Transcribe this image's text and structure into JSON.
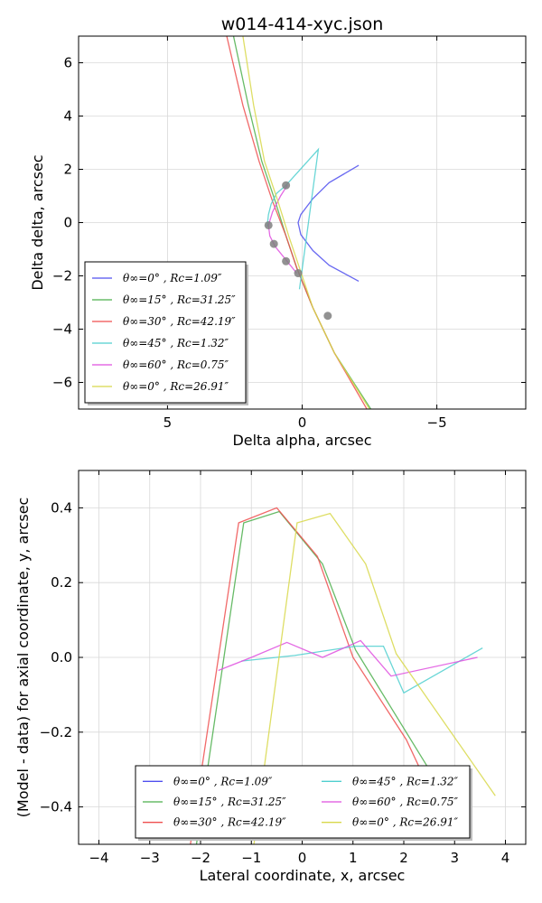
{
  "chart_data": [
    {
      "type": "line",
      "title": "w014-414-xyc.json",
      "xlabel": "Delta alpha, arcsec",
      "ylabel": "Delta delta, arcsec",
      "xlim": [
        8.3,
        -8.3
      ],
      "ylim": [
        -7,
        7
      ],
      "xticks": [
        5,
        0,
        -5
      ],
      "xtick_labels": [
        "5",
        "0",
        "−5"
      ],
      "yticks": [
        -6,
        -4,
        -2,
        0,
        2,
        4,
        6
      ],
      "ytick_labels": [
        "−6",
        "−4",
        "−2",
        "0",
        "2",
        "4",
        "6"
      ],
      "grid": true,
      "legend_position": "lower-left",
      "series": [
        {
          "name": "θ∞=0° , Rc=1.09″",
          "color": "#4f4fef",
          "x": [
            -2.1,
            -1.0,
            -0.4,
            0.05,
            0.15,
            0.05,
            -0.4,
            -1.0,
            -2.1
          ],
          "y": [
            2.15,
            1.5,
            0.9,
            0.3,
            0.0,
            -0.45,
            -1.05,
            -1.6,
            -2.2
          ]
        },
        {
          "name": "θ∞=15° , Rc=31.25″",
          "color": "#4caf4c",
          "x": [
            2.55,
            2.0,
            1.5,
            1.0,
            0.6,
            0.2,
            -0.4,
            -1.2,
            -2.55
          ],
          "y": [
            7.0,
            4.4,
            2.3,
            0.8,
            -0.5,
            -1.7,
            -3.2,
            -4.9,
            -7.0
          ]
        },
        {
          "name": "θ∞=30° , Rc=42.19″",
          "color": "#ef4f4f",
          "x": [
            2.8,
            2.2,
            1.6,
            1.1,
            0.6,
            0.2,
            -0.4,
            -1.2,
            -2.4
          ],
          "y": [
            7.0,
            4.4,
            2.3,
            0.8,
            -0.5,
            -1.7,
            -3.2,
            -4.9,
            -7.0
          ]
        },
        {
          "name": "θ∞=45° , Rc=1.32″",
          "color": "#4fcfcf",
          "x": [
            1.3,
            1.25,
            1.15,
            0.95,
            0.6,
            -0.6,
            0.1
          ],
          "y": [
            -0.15,
            0.3,
            0.7,
            1.1,
            1.4,
            2.75,
            -2.5
          ]
        },
        {
          "name": "θ∞=60° , Rc=0.75″",
          "color": "#df4fdf",
          "x": [
            0.55,
            0.8,
            1.1,
            1.25,
            1.2,
            1.0,
            0.6,
            0.2
          ],
          "y": [
            1.4,
            1.0,
            0.4,
            -0.1,
            -0.5,
            -0.9,
            -1.4,
            -1.9
          ]
        },
        {
          "name": "θ∞=0° , Rc=26.91″",
          "color": "#d8d84a",
          "x": [
            2.2,
            1.8,
            1.4,
            0.9,
            0.5,
            0.1,
            -0.4,
            -1.2,
            -2.5
          ],
          "y": [
            7.0,
            4.4,
            2.3,
            0.8,
            -0.5,
            -1.7,
            -3.2,
            -4.9,
            -7.0
          ]
        }
      ],
      "points": {
        "color": "#7f7f7f",
        "x": [
          0.6,
          1.25,
          1.05,
          0.6,
          0.15,
          -0.95
        ],
        "y": [
          1.4,
          -0.1,
          -0.8,
          -1.45,
          -1.9,
          -3.5
        ]
      }
    },
    {
      "type": "line",
      "title": "",
      "xlabel": "Lateral coordinate, x, arcsec",
      "ylabel": "(Model - data) for axial coordinate, y, arcsec",
      "xlim": [
        -4.4,
        4.4
      ],
      "ylim": [
        -0.5,
        0.5
      ],
      "xticks": [
        -4,
        -3,
        -2,
        -1,
        0,
        1,
        2,
        3,
        4
      ],
      "xtick_labels": [
        "−4",
        "−3",
        "−2",
        "−1",
        "0",
        "1",
        "2",
        "3",
        "4"
      ],
      "yticks": [
        -0.4,
        -0.2,
        0.0,
        0.2,
        0.4
      ],
      "ytick_labels": [
        "−0.4",
        "−0.2",
        "0.0",
        "0.2",
        "0.4"
      ],
      "grid": true,
      "legend_position": "lower-center",
      "series": [
        {
          "name": "θ∞=0° , Rc=1.09″",
          "color": "#4f4fef",
          "x": [],
          "y": []
        },
        {
          "name": "θ∞=15° , Rc=31.25″",
          "color": "#4caf4c",
          "x": [
            -2.08,
            -1.15,
            -0.45,
            0.4,
            1.05,
            2.5
          ],
          "y": [
            -0.5,
            0.36,
            0.39,
            0.25,
            0.02,
            -0.3
          ]
        },
        {
          "name": "θ∞=30° , Rc=42.19″",
          "color": "#ef4f4f",
          "x": [
            -2.2,
            -1.25,
            -0.5,
            0.3,
            1.0,
            2.05,
            2.6
          ],
          "y": [
            -0.5,
            0.36,
            0.4,
            0.27,
            0.0,
            -0.22,
            -0.38
          ]
        },
        {
          "name": "θ∞=45° , Rc=1.32″",
          "color": "#4fcfcf",
          "x": [
            -1.2,
            -0.15,
            1.05,
            1.6,
            2.0,
            3.55
          ],
          "y": [
            -0.01,
            0.005,
            0.03,
            0.03,
            -0.095,
            0.025
          ]
        },
        {
          "name": "θ∞=60° , Rc=0.75″",
          "color": "#df4fdf",
          "x": [
            -1.65,
            -1.0,
            -0.3,
            0.4,
            1.15,
            1.75,
            3.45
          ],
          "y": [
            -0.035,
            0.0,
            0.04,
            0.0,
            0.045,
            -0.05,
            0.0
          ]
        },
        {
          "name": "θ∞=0° , Rc=26.91″",
          "color": "#d8d84a",
          "x": [
            -0.95,
            -0.1,
            0.55,
            1.25,
            1.85,
            3.8
          ],
          "y": [
            -0.5,
            0.36,
            0.385,
            0.25,
            0.01,
            -0.37
          ]
        }
      ]
    }
  ]
}
